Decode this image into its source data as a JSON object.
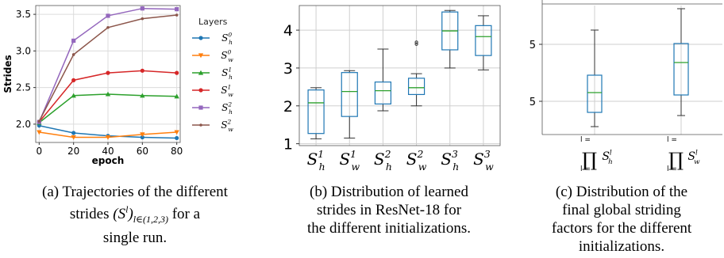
{
  "charts": [
    {
      "type": "line",
      "xlabel": "epoch",
      "ylabel": "Strides",
      "x": [
        0,
        20,
        40,
        60,
        80
      ],
      "xlim": [
        -2,
        82
      ],
      "ylim": [
        1.75,
        3.62
      ],
      "xticks": [
        0,
        20,
        40,
        60,
        80
      ],
      "yticks": [
        2.0,
        2.5,
        3.0,
        3.5
      ],
      "grid": true,
      "legend_title": "Layers",
      "legend_position": "right",
      "series": [
        {
          "name": "S_h^0",
          "base": "S",
          "sub": "h",
          "sup": "0",
          "color": "#1f77b4",
          "marker": "circle",
          "values": [
            1.98,
            1.88,
            1.84,
            1.82,
            1.81
          ]
        },
        {
          "name": "S_w^0",
          "base": "S",
          "sub": "w",
          "sup": "0",
          "color": "#ff7f0e",
          "marker": "triangle-down",
          "values": [
            1.89,
            1.82,
            1.82,
            1.86,
            1.89
          ]
        },
        {
          "name": "S_h^1",
          "base": "S",
          "sub": "h",
          "sup": "1",
          "color": "#2ca02c",
          "marker": "triangle-up",
          "values": [
            2.02,
            2.39,
            2.41,
            2.39,
            2.38
          ]
        },
        {
          "name": "S_w^1",
          "base": "S",
          "sub": "w",
          "sup": "1",
          "color": "#d62728",
          "marker": "circle",
          "values": [
            2.03,
            2.6,
            2.7,
            2.73,
            2.7
          ]
        },
        {
          "name": "S_h^2",
          "base": "S",
          "sub": "h",
          "sup": "2",
          "color": "#9467bd",
          "marker": "square",
          "values": [
            2.03,
            3.14,
            3.48,
            3.58,
            3.57
          ]
        },
        {
          "name": "S_w^2",
          "base": "S",
          "sub": "w",
          "sup": "2",
          "color": "#8c564b",
          "marker": "dot",
          "values": [
            2.04,
            2.95,
            3.32,
            3.44,
            3.49
          ]
        }
      ],
      "caption": "(a) Trajectories of the different strides (S^l)_{l∈(1,2,3)} for a single run."
    },
    {
      "type": "box",
      "ylim": [
        0.95,
        4.65
      ],
      "yticks": [
        1,
        2,
        3,
        4
      ],
      "grid": true,
      "categories": [
        {
          "base": "S",
          "sub": "h",
          "sup": "1"
        },
        {
          "base": "S",
          "sub": "w",
          "sup": "1"
        },
        {
          "base": "S",
          "sub": "h",
          "sup": "2"
        },
        {
          "base": "S",
          "sub": "w",
          "sup": "2"
        },
        {
          "base": "S",
          "sub": "h",
          "sup": "3"
        },
        {
          "base": "S",
          "sub": "w",
          "sup": "3"
        }
      ],
      "boxes": [
        {
          "whislo": 1.13,
          "q1": 1.27,
          "med": 2.08,
          "q3": 2.42,
          "whishi": 2.48,
          "fliers": []
        },
        {
          "whislo": 1.15,
          "q1": 1.72,
          "med": 2.38,
          "q3": 2.88,
          "whishi": 2.93,
          "fliers": []
        },
        {
          "whislo": 1.87,
          "q1": 2.05,
          "med": 2.4,
          "q3": 2.63,
          "whishi": 3.5,
          "fliers": []
        },
        {
          "whislo": 2.0,
          "q1": 2.3,
          "med": 2.48,
          "q3": 2.73,
          "whishi": 2.85,
          "fliers": [
            3.63,
            3.68
          ]
        },
        {
          "whislo": 3.0,
          "q1": 3.48,
          "med": 3.98,
          "q3": 4.48,
          "whishi": 4.52,
          "fliers": []
        },
        {
          "whislo": 2.95,
          "q1": 3.33,
          "med": 3.83,
          "q3": 4.12,
          "whishi": 4.38,
          "fliers": []
        }
      ],
      "caption": "(b) Distribution of learned strides in ResNet-18 for the different initializations."
    },
    {
      "type": "box",
      "ytick_labels": [
        "5",
        "5"
      ],
      "grid": true,
      "categories": [
        {
          "top": "l =",
          "base": "S",
          "sub": "h",
          "sup": "l",
          "bottom": "l ="
        },
        {
          "top": "l =",
          "base": "S",
          "sub": "w",
          "sup": "l",
          "bottom": "l ="
        }
      ],
      "caption": "(c) Distribution of the final global striding factors for the different initializations."
    }
  ]
}
